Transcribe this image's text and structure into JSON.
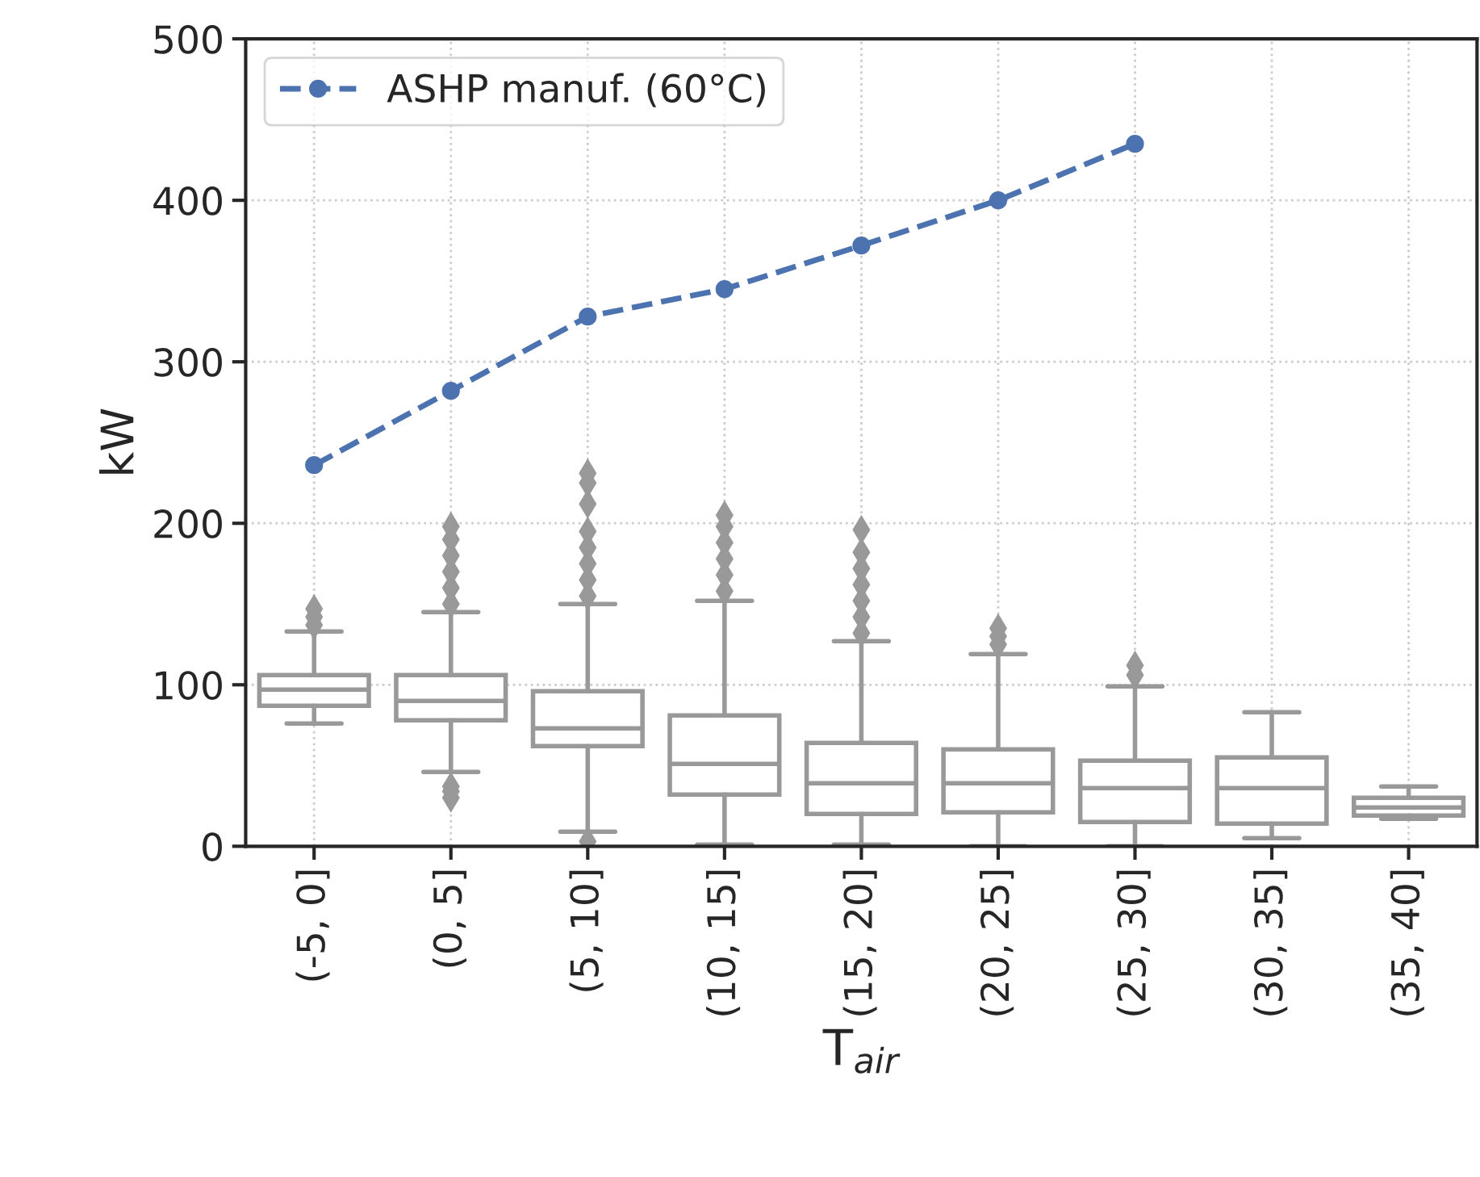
{
  "chart_data": {
    "type": "box",
    "xlabel": "T$_{air}$",
    "ylabel": "kW",
    "categories": [
      "(-5, 0]",
      "(0, 5]",
      "(5, 10]",
      "(10, 15]",
      "(15, 20]",
      "(20, 25]",
      "(25, 30]",
      "(30, 35]",
      "(35, 40]"
    ],
    "ylim": [
      0,
      500
    ],
    "yticks": [
      0,
      100,
      200,
      300,
      400,
      500
    ],
    "grid": true,
    "legend": "top left",
    "series": [
      {
        "color": "#999999",
        "boxes": [
          {
            "low": 76,
            "q1": 87,
            "median": 97,
            "q3": 106,
            "high": 133,
            "outliers": [
              137,
              142,
              147
            ]
          },
          {
            "low": 46,
            "q1": 78,
            "median": 90,
            "q3": 106,
            "high": 145,
            "outliers": [
              30,
              34,
              37,
              150,
              160,
              170,
              180,
              190,
              198
            ]
          },
          {
            "low": 9,
            "q1": 62,
            "median": 73,
            "q3": 96,
            "high": 150,
            "outliers": [
              3,
              155,
              165,
              175,
              185,
              195,
              212,
              225,
              231
            ]
          },
          {
            "low": 1,
            "q1": 32,
            "median": 51,
            "q3": 81,
            "high": 152,
            "outliers": [
              158,
              168,
              178,
              188,
              198,
              205
            ]
          },
          {
            "low": 1,
            "q1": 20,
            "median": 39,
            "q3": 64,
            "high": 127,
            "outliers": [
              132,
              142,
              152,
              162,
              172,
              182,
              196
            ]
          },
          {
            "low": 0,
            "q1": 21,
            "median": 39,
            "q3": 60,
            "high": 119,
            "outliers": [
              125,
              130,
              135
            ]
          },
          {
            "low": 0,
            "q1": 15,
            "median": 36,
            "q3": 53,
            "high": 99,
            "outliers": [
              106,
              112
            ]
          },
          {
            "low": 5,
            "q1": 14,
            "median": 36,
            "q3": 55,
            "high": 83
          },
          {
            "low": 17,
            "q1": 19,
            "median": 24,
            "q3": 30,
            "high": 37
          }
        ]
      },
      {
        "type": "line",
        "name": "ASHP manuf. (60°C)",
        "color": "#4c72b0",
        "marker": "circle",
        "line_style": "dashed",
        "values": [
          236,
          282,
          328,
          345,
          372,
          400,
          435,
          null,
          null
        ]
      }
    ]
  }
}
